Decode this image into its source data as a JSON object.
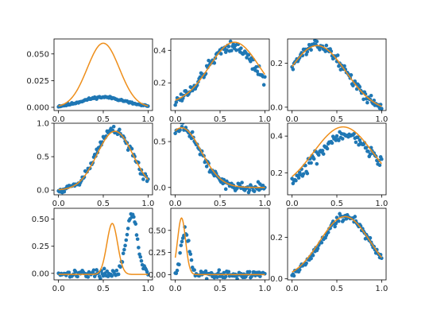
{
  "colors": {
    "points": "#1f77b4",
    "fit": "#ee8e1a",
    "frame": "#000000"
  },
  "chart_data": [
    {
      "type": "scatter",
      "position": "row 1, col 1",
      "xlim": [
        -0.05,
        1.05
      ],
      "ylim": [
        -0.003,
        0.064
      ],
      "xticks": [
        "0.0",
        "0.5",
        "1.0"
      ],
      "yticks": [
        "0.000",
        "0.025",
        "0.050"
      ],
      "ytick_values": [
        0,
        0.025,
        0.05
      ],
      "curve": {
        "kind": "gauss",
        "amp": 0.06,
        "mu": 0.5,
        "sigma": 0.18,
        "base": 0.0
      },
      "points": {
        "kind": "gauss",
        "amp": 0.0095,
        "mu": 0.5,
        "sigma": 0.24,
        "base": 0.0,
        "noise": 0.0007,
        "n": 95,
        "seed": 11
      }
    },
    {
      "type": "scatter",
      "position": "row 1, col 2",
      "xlim": [
        -0.05,
        1.05
      ],
      "ylim": [
        0.03,
        0.47
      ],
      "xticks": [
        "0.0",
        "0.5",
        "1.0"
      ],
      "yticks": [
        "0.2",
        "0.4"
      ],
      "ytick_values": [
        0.2,
        0.4
      ],
      "curve": {
        "kind": "gauss",
        "amp": 0.38,
        "mu": 0.66,
        "sigma": 0.28,
        "base": 0.07
      },
      "points": {
        "kind": "gauss",
        "amp": 0.36,
        "mu": 0.63,
        "sigma": 0.27,
        "base": 0.07,
        "noise": 0.025,
        "n": 95,
        "seed": 12
      }
    },
    {
      "type": "scatter",
      "position": "row 1, col 3",
      "xlim": [
        -0.05,
        1.05
      ],
      "ylim": [
        -0.015,
        0.31
      ],
      "xticks": [
        "0.0",
        "0.5",
        "1.0"
      ],
      "yticks": [
        "0.0",
        "0.2"
      ],
      "ytick_values": [
        0.0,
        0.2
      ],
      "curve": {
        "kind": "gauss",
        "amp": 0.3,
        "mu": 0.28,
        "sigma": 0.32,
        "base": -0.02
      },
      "points": {
        "kind": "gauss",
        "amp": 0.3,
        "mu": 0.28,
        "sigma": 0.32,
        "base": -0.02,
        "noise": 0.014,
        "n": 95,
        "seed": 13
      }
    },
    {
      "type": "scatter",
      "position": "row 2, col 1",
      "xlim": [
        -0.05,
        1.05
      ],
      "ylim": [
        -0.07,
        1.0
      ],
      "xticks": [
        "0.0",
        "0.5",
        "1.0"
      ],
      "yticks": [
        "0.0",
        "0.5",
        "1.0"
      ],
      "ytick_values": [
        0.0,
        0.5,
        1.0
      ],
      "curve": {
        "kind": "gauss",
        "amp": 0.88,
        "mu": 0.63,
        "sigma": 0.2,
        "base": 0.0
      },
      "points": {
        "kind": "gauss",
        "amp": 0.9,
        "mu": 0.62,
        "sigma": 0.2,
        "base": 0.0,
        "noise": 0.045,
        "n": 95,
        "seed": 14
      }
    },
    {
      "type": "scatter",
      "position": "row 2, col 2",
      "xlim": [
        -0.05,
        1.05
      ],
      "ylim": [
        -0.08,
        0.7
      ],
      "xticks": [
        "0.0",
        "0.5",
        "1.0"
      ],
      "yticks": [
        "0.0",
        "0.5"
      ],
      "ytick_values": [
        0.0,
        0.5
      ],
      "curve": {
        "kind": "gauss",
        "amp": 0.65,
        "mu": 0.07,
        "sigma": 0.22,
        "base": 0.0
      },
      "points": {
        "kind": "gauss",
        "amp": 0.65,
        "mu": 0.07,
        "sigma": 0.21,
        "base": 0.0,
        "noise": 0.035,
        "n": 95,
        "seed": 15
      }
    },
    {
      "type": "scatter",
      "position": "row 2, col 3",
      "xlim": [
        -0.05,
        1.05
      ],
      "ylim": [
        0.08,
        0.47
      ],
      "xticks": [
        "0.0",
        "0.5",
        "1.0"
      ],
      "yticks": [
        "0.2",
        "0.4"
      ],
      "ytick_values": [
        0.2,
        0.4
      ],
      "curve": {
        "kind": "gauss",
        "amp": 0.35,
        "mu": 0.57,
        "sigma": 0.33,
        "base": 0.1
      },
      "points": {
        "kind": "gauss",
        "amp": 0.31,
        "mu": 0.6,
        "sigma": 0.33,
        "base": 0.1,
        "noise": 0.025,
        "n": 95,
        "seed": 16
      }
    },
    {
      "type": "scatter",
      "position": "row 3, col 1",
      "xlim": [
        -0.05,
        1.05
      ],
      "ylim": [
        -0.06,
        0.6
      ],
      "xticks": [
        "0.0",
        "0.5",
        "1.0"
      ],
      "yticks": [
        "0.00",
        "0.25",
        "0.50"
      ],
      "ytick_values": [
        0.0,
        0.25,
        0.5
      ],
      "curve": {
        "kind": "gauss",
        "amp": 0.47,
        "mu": 0.6,
        "sigma": 0.06,
        "base": -0.01
      },
      "points": {
        "kind": "gauss",
        "amp": 0.54,
        "mu": 0.82,
        "sigma": 0.06,
        "base": 0.0,
        "noise": 0.025,
        "n": 95,
        "seed": 17
      }
    },
    {
      "type": "scatter",
      "position": "row 3, col 2",
      "xlim": [
        -0.05,
        1.05
      ],
      "ylim": [
        -0.06,
        0.75
      ],
      "xticks": [
        "0.0",
        "0.5",
        "1.0"
      ],
      "yticks": [
        "0.00",
        "0.25",
        "0.50"
      ],
      "ytick_values": [
        0.0,
        0.25,
        0.5
      ],
      "curve": {
        "kind": "gauss",
        "amp": 0.64,
        "mu": 0.07,
        "sigma": 0.045,
        "base": 0.0,
        "xstart": 0.0
      },
      "points": {
        "kind": "gauss",
        "amp": 0.5,
        "mu": 0.11,
        "sigma": 0.045,
        "base": 0.0,
        "noise": 0.03,
        "n": 95,
        "seed": 18
      }
    },
    {
      "type": "scatter",
      "position": "row 3, col 3",
      "xlim": [
        -0.05,
        1.05
      ],
      "ylim": [
        -0.005,
        0.34
      ],
      "xticks": [
        "0.0",
        "0.5",
        "1.0"
      ],
      "yticks": [
        "0.0",
        "0.2"
      ],
      "ytick_values": [
        0.0,
        0.2
      ],
      "curve": {
        "kind": "gauss",
        "amp": 0.3,
        "mu": 0.59,
        "sigma": 0.28,
        "base": 0.0
      },
      "points": {
        "kind": "gauss",
        "amp": 0.3,
        "mu": 0.6,
        "sigma": 0.27,
        "base": 0.0,
        "noise": 0.015,
        "n": 95,
        "seed": 19
      }
    }
  ]
}
